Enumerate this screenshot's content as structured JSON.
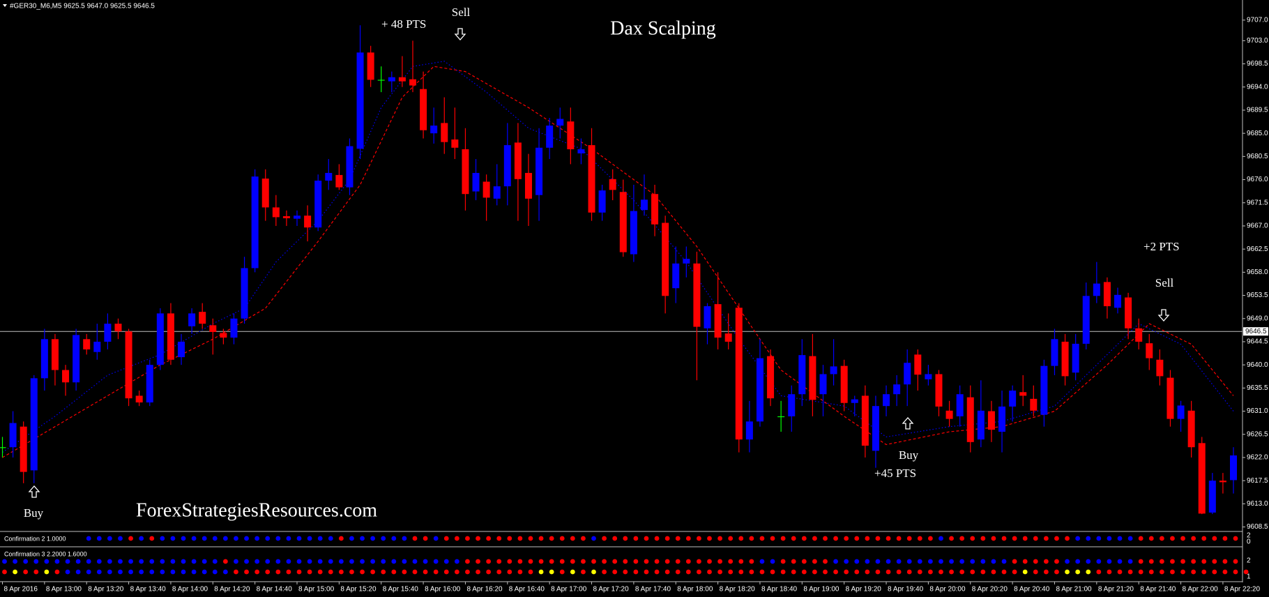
{
  "chart_data": {
    "type": "candlestick",
    "header": "#GER30_M6,M5 9625.5 9647.0 9625.5 9646.5",
    "title": "Dax Scalping",
    "watermark": "ForexStrategiesResources.com",
    "colors": {
      "up": "#0000ff",
      "down": "#ff0000",
      "flat": "#00ff00"
    },
    "open": [
      9624,
      9624,
      9628,
      9619.5,
      9637.4,
      9645,
      9639,
      9636.6,
      9645,
      9642.5,
      9644.5,
      9648,
      9646.5,
      9634,
      9632.7,
      9640,
      9650,
      9641.5,
      9647.5,
      9650.3,
      9647.7,
      9646.2,
      9645.3,
      9649,
      9658.8,
      9676.2,
      9670.6,
      9668.9,
      9668.4,
      9669,
      9666.7,
      9675.8,
      9676.9,
      9674.5,
      9682,
      9700.7,
      9695.4,
      9695.1,
      9695.9,
      9695.5,
      9693.6,
      9685,
      9687,
      9683.8,
      9681.9,
      9673.7,
      9675.6,
      9672.3,
      9674.7,
      9683.2,
      9677.3,
      9673,
      9682.2,
      9686.5,
      9687.3,
      9681.1,
      9682.7,
      9669.6,
      9676.1,
      9673.6,
      9661.5,
      9670.1,
      9673.2,
      9667.6,
      9654.9,
      9659.7,
      9659.7,
      9647.1,
      9651.8,
      9646.1,
      9651.1,
      9625.5,
      9629,
      9641.7,
      9630,
      9630,
      9634.3,
      9641.7,
      9634.3,
      9638.2,
      9639.8,
      9632.6,
      9634,
      9623.3,
      9632,
      9634.3,
      9636.2,
      9642,
      9637.2,
      9638.2,
      9631.1,
      9630,
      9633.7,
      9625.5,
      9631,
      9627,
      9631.9,
      9634.7,
      9633.4,
      9630.3,
      9639.8,
      9644.5,
      9638.5,
      9644.1,
      9653.4,
      9656.1,
      9651.1,
      9653.1,
      9647.1,
      9644.2,
      9641,
      9637.5,
      9629.5,
      9631.1,
      9624.8,
      9611.3,
      9617.5,
      9617.6
    ],
    "high": [
      9626,
      9631,
      9629,
      9638,
      9647,
      9646,
      9640,
      9647,
      9646,
      9648,
      9650,
      9649,
      9647,
      9635,
      9641,
      9651,
      9652,
      9646,
      9651,
      9652,
      9649,
      9647,
      9650,
      9661,
      9678,
      9678,
      9673,
      9670,
      9670,
      9671,
      9677,
      9680,
      9679,
      9684,
      9706,
      9702,
      9698,
      9697,
      9700,
      9703,
      9697,
      9690,
      9692,
      9690,
      9686,
      9680,
      9677,
      9679,
      9687,
      9687,
      9681,
      9686,
      9688,
      9690,
      9690,
      9684,
      9686,
      9675,
      9678,
      9676,
      9675,
      9677,
      9675,
      9669,
      9663,
      9663,
      9662,
      9652,
      9658,
      9650,
      9652,
      9633,
      9645,
      9643,
      9633,
      9636,
      9645,
      9646,
      9640,
      9645,
      9641,
      9634,
      9636,
      9634,
      9636,
      9638,
      9643,
      9643,
      9640,
      9639,
      9633,
      9636,
      9636,
      9637,
      9633,
      9635,
      9636,
      9638,
      9636,
      9641,
      9647,
      9646,
      9646,
      9656,
      9660,
      9657,
      9655,
      9654,
      9649,
      9646,
      9643,
      9639,
      9633,
      9633,
      9626,
      9619,
      9619,
      9624
    ],
    "low": [
      9622,
      9622,
      9617,
      9617,
      9635,
      9636,
      9634,
      9635,
      9642,
      9641,
      9643,
      9645,
      9632,
      9632,
      9632,
      9639,
      9640,
      9640,
      9646,
      9647,
      9642,
      9644,
      9644,
      9648,
      9658,
      9668,
      9667,
      9667,
      9667,
      9664,
      9666,
      9674,
      9674,
      9673,
      9680,
      9694,
      9693,
      9693,
      9694,
      9693,
      9684,
      9683,
      9681,
      9680,
      9670,
      9672,
      9668,
      9671,
      9671,
      9668,
      9667,
      9668,
      9680,
      9684,
      9679,
      9679,
      9668,
      9668,
      9672,
      9661,
      9660,
      9669,
      9665,
      9650,
      9652,
      9657,
      9637,
      9644,
      9643,
      9643,
      9623,
      9623,
      9628,
      9632,
      9627,
      9627,
      9632,
      9630,
      9630,
      9636,
      9631,
      9630,
      9622,
      9620,
      9630,
      9632,
      9632,
      9635,
      9636,
      9630,
      9628,
      9628,
      9623,
      9624,
      9625,
      9623,
      9629,
      9632,
      9630,
      9628,
      9638,
      9636,
      9637,
      9643,
      9652,
      9649,
      9650,
      9645,
      9643,
      9639,
      9636,
      9628,
      9627,
      9622,
      9611,
      9611,
      9615,
      9615
    ],
    "close": [
      9624,
      9628.7,
      9619.2,
      9637.4,
      9645,
      9639,
      9636.6,
      9645.8,
      9643,
      9644.5,
      9648,
      9646.5,
      9633.5,
      9632.7,
      9640,
      9650,
      9641,
      9644.5,
      9650,
      9648,
      9646.4,
      9645.3,
      9649,
      9658.8,
      9676.6,
      9670.6,
      9668.7,
      9668.5,
      9669,
      9666.7,
      9675.8,
      9677.3,
      9674.5,
      9682.5,
      9700.7,
      9695.4,
      9695.4,
      9695.9,
      9695.1,
      9694.3,
      9685.6,
      9686.5,
      9683.3,
      9682.2,
      9673.2,
      9677.3,
      9672.5,
      9674.7,
      9682.7,
      9676.1,
      9672.3,
      9682.2,
      9686.5,
      9687.8,
      9681.9,
      9681.9,
      9669.6,
      9673.9,
      9674,
      9661.9,
      9669.9,
      9672.1,
      9667.3,
      9653.4,
      9659.7,
      9660.6,
      9647.4,
      9651.4,
      9645.3,
      9644.5,
      9625.5,
      9629,
      9641.3,
      9633.5,
      9630,
      9634.3,
      9641.9,
      9633.2,
      9638.2,
      9639.7,
      9632.6,
      9633.3,
      9624.3,
      9632,
      9634.3,
      9636.2,
      9640.4,
      9638.1,
      9638.2,
      9631.9,
      9629.5,
      9634.3,
      9625,
      9631.1,
      9627.4,
      9631.9,
      9635,
      9634,
      9631.1,
      9639.8,
      9645,
      9637.8,
      9644.1,
      9653.4,
      9655.8,
      9651.4,
      9653.6,
      9647.1,
      9644.5,
      9641.3,
      9637.8,
      9629.5,
      9632.1,
      9624,
      9611.1,
      9617.5,
      9617.2,
      9622.4
    ],
    "lines": [
      {
        "color": "#0000ff",
        "style": "dotted",
        "x": [
          0,
          5,
          10,
          15,
          20,
          23,
          26,
          30,
          33,
          36,
          39,
          42,
          46,
          50,
          55,
          60,
          65,
          70,
          74,
          80,
          84,
          90,
          95,
          100,
          105,
          108,
          112,
          117
        ],
        "values": [
          9623,
          9630,
          9638,
          9642,
          9648,
          9651,
          9660,
          9668,
          9676,
          9690,
          9698,
          9699,
          9693,
          9686,
          9682,
          9672,
          9660,
          9645,
          9634,
          9632,
          9626,
          9628,
          9629,
          9632,
          9642,
          9648,
          9644,
          9631
        ]
      },
      {
        "color": "#ff0000",
        "style": "dashed",
        "x": [
          0,
          5,
          10,
          15,
          20,
          25,
          30,
          34,
          38,
          41,
          44,
          50,
          56,
          62,
          66,
          70,
          74,
          80,
          84,
          90,
          95,
          100,
          105,
          109,
          113,
          117
        ],
        "values": [
          9622,
          9628,
          9634,
          9640,
          9645,
          9651,
          9664,
          9675,
          9692,
          9698,
          9697,
          9690,
          9682,
          9673,
          9663,
          9651,
          9639,
          9630,
          9624.5,
          9627,
          9628,
          9631,
          9640,
          9648,
          9644,
          9634
        ]
      }
    ],
    "price_line": 9646.5,
    "ylim": [
      9607.9,
      9710.5
    ],
    "yticks": [
      {
        "value": 9707,
        "label": "9707.0"
      },
      {
        "value": 9703,
        "label": "9703.0"
      },
      9698.5,
      {
        "value": 9694,
        "label": "9694.0"
      },
      9689.5,
      {
        "value": 9685,
        "label": "9685.0"
      },
      9680.5,
      {
        "value": 9676,
        "label": "9676.0"
      },
      9671.5,
      {
        "value": 9667,
        "label": "9667.0"
      },
      9662.5,
      {
        "value": 9658,
        "label": "9658.0"
      },
      9653.5,
      {
        "value": 9649,
        "label": "9649.0"
      },
      9644.5,
      {
        "value": 9640,
        "label": "9640.0"
      },
      9635.5,
      {
        "value": 9631,
        "label": "9631.0"
      },
      9626.5,
      {
        "value": 9622,
        "label": "9622.0"
      },
      9617.5,
      {
        "value": 9613,
        "label": "9613.0"
      },
      9608.5
    ],
    "xticks": [
      {
        "value": 0,
        "label": "8 Apr 2016"
      },
      {
        "value": 4,
        "label": "8 Apr 13:00"
      },
      {
        "value": 8,
        "label": "8 Apr 13:20"
      },
      {
        "value": 12,
        "label": "8 Apr 13:40"
      },
      {
        "value": 16,
        "label": "8 Apr 14:00"
      },
      {
        "value": 20,
        "label": "8 Apr 14:20"
      },
      {
        "value": 24,
        "label": "8 Apr 14:40"
      },
      {
        "value": 28,
        "label": "8 Apr 15:00"
      },
      {
        "value": 32,
        "label": "8 Apr 15:20"
      },
      {
        "value": 36,
        "label": "8 Apr 15:40"
      },
      {
        "value": 40,
        "label": "8 Apr 16:00"
      },
      {
        "value": 44,
        "label": "8 Apr 16:20"
      },
      {
        "value": 48,
        "label": "8 Apr 16:40"
      },
      {
        "value": 52,
        "label": "8 Apr 17:00"
      },
      {
        "value": 56,
        "label": "8 Apr 17:20"
      },
      {
        "value": 60,
        "label": "8 Apr 17:40"
      },
      {
        "value": 64,
        "label": "8 Apr 18:00"
      },
      {
        "value": 68,
        "label": "8 Apr 18:20"
      },
      {
        "value": 72,
        "label": "8 Apr 18:40"
      },
      {
        "value": 76,
        "label": "8 Apr 19:00"
      },
      {
        "value": 80,
        "label": "8 Apr 19:20"
      },
      {
        "value": 84,
        "label": "8 Apr 19:40"
      },
      {
        "value": 88,
        "label": "8 Apr 20:00"
      },
      {
        "value": 92,
        "label": "8 Apr 20:20"
      },
      {
        "value": 96,
        "label": "8 Apr 20:40"
      },
      {
        "value": 100,
        "label": "8 Apr 21:00"
      },
      {
        "value": 104,
        "label": "8 Apr 21:20"
      },
      {
        "value": 108,
        "label": "8 Apr 21:40"
      },
      {
        "value": 112,
        "label": "8 Apr 22:00"
      },
      {
        "value": 116,
        "label": "8 Apr 22:20"
      }
    ],
    "annotations": [
      "+ 48 PTS",
      "Sell",
      "Buy",
      "Buy",
      "+45 PTS",
      "+2 PTS",
      "Sell"
    ],
    "dot_colors": {
      "b": "#0000ff",
      "r": "#ff0000",
      "y": "#ffff00"
    },
    "indicators": [
      {
        "label": "Confirmation 2 1.0000",
        "yticks": [
          2,
          0
        ],
        "rows": [
          "bbbbbbbbbbbbrbrbbbbbbbbbbbbbbbbbrbbbbbbrrbrrrrrrrrrrrrrrbrrrrrrrrrrrrrrrrrrrrrrrrrrrrrrrrbrrrrrrrrrrrrbbbbbbrrrrrrrrrr"
        ]
      },
      {
        "label": "Confirmation 3 2.2000 1.6000",
        "yticks": [
          2,
          1
        ],
        "rows": [
          "bbbbbbbbbbbbbbbbbbbbbrbbbbbbbbbbbbbbbbbbbbbbrrrrrrrrrrrrrrrrrrrrrrrrrrrrbbrrrrrbbbbbbbbbbbbbbbbbrrrrrbbbbbbbrrrrrrrrrr",
          "ryrryrbbbbbbbbbbbbbbbbrrrrrrrrrrrrrrrrrrrrrrrrrrrrryyryryrrrrrrrrrrrrrrrrrrrrrrrrrrrrrrrrrrrrrrrryrrryyyrrrrrrrrrrrrrrr"
        ]
      }
    ]
  }
}
